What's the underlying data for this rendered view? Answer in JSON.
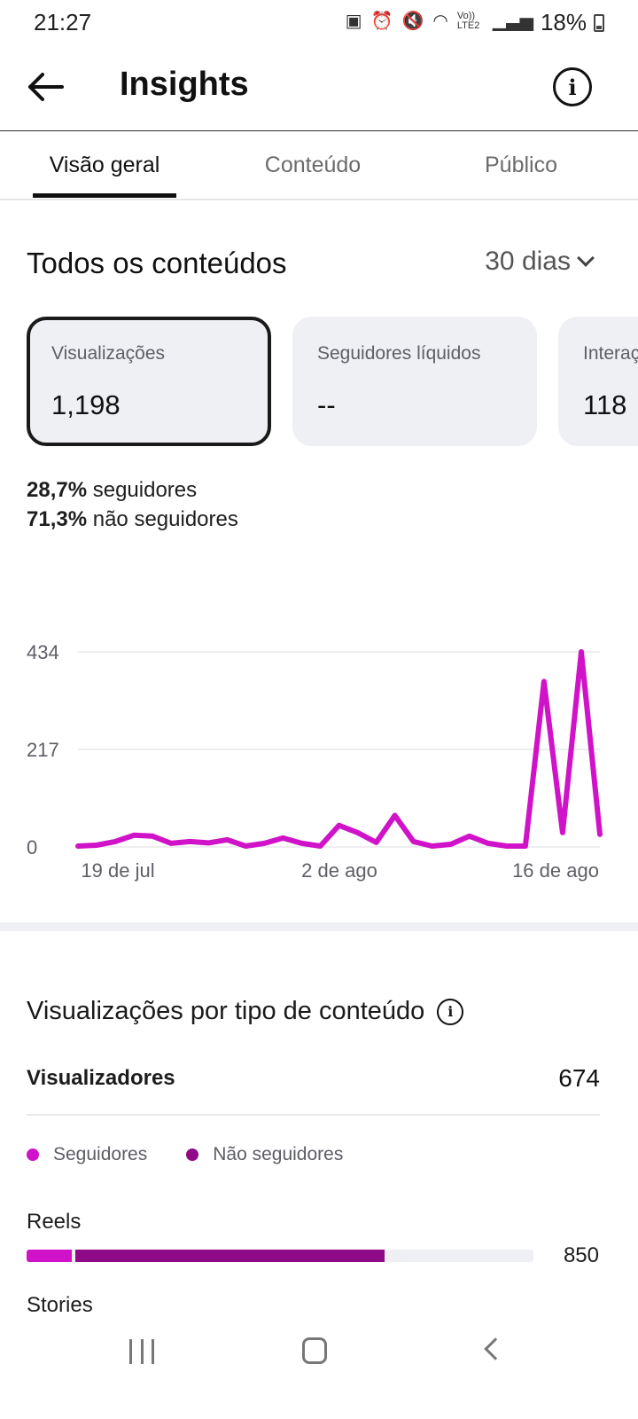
{
  "status_bar": {
    "time": "21:27",
    "icons": [
      "notification-icon",
      "alarm-icon",
      "mute-icon",
      "wifi-icon",
      "volte-icon",
      "signal-icon"
    ],
    "volte_text": "Vo)) LTE2",
    "battery": "18%"
  },
  "header": {
    "title": "Insights"
  },
  "tabs": [
    {
      "label": "Visão geral",
      "active": true
    },
    {
      "label": "Conteúdo",
      "active": false
    },
    {
      "label": "Público",
      "active": false
    }
  ],
  "overview": {
    "section_title": "Todos os conteúdos",
    "period": "30 dias"
  },
  "cards": [
    {
      "label": "Visualizações",
      "value": "1,198",
      "selected": true
    },
    {
      "label": "Seguidores líquidos",
      "value": "--",
      "selected": false
    },
    {
      "label": "Interações",
      "value": "118",
      "selected": false
    }
  ],
  "split": {
    "followers_pct": "28,7%",
    "followers_text": "seguidores",
    "non_followers_pct": "71,3%",
    "non_followers_text": "não seguidores"
  },
  "chart_data": {
    "type": "line",
    "title": "",
    "xlabel": "",
    "ylabel": "",
    "ylim": [
      0,
      434
    ],
    "y_ticks": [
      "0",
      "217",
      "434"
    ],
    "x_ticks": [
      "19 de jul",
      "2 de ago",
      "16 de ago"
    ],
    "grid": true,
    "color": "#d012c8",
    "series": [
      {
        "values": [
          2,
          4,
          12,
          26,
          24,
          8,
          12,
          9,
          16,
          2,
          8,
          20,
          8,
          2,
          48,
          32,
          10,
          70,
          12,
          2,
          6,
          24,
          8,
          2,
          2,
          368,
          32,
          434,
          28
        ]
      }
    ]
  },
  "content_type": {
    "title": "Visualizações por tipo de conteúdo",
    "viewers_label": "Visualizadores",
    "viewers_value": "674",
    "legend": [
      {
        "label": "Seguidores",
        "color": "#d012c8"
      },
      {
        "label": "Não seguidores",
        "color": "#8e0a86"
      }
    ],
    "bars": [
      {
        "label": "Reels",
        "value": "850",
        "followers_fraction": 0.09,
        "non_followers_fraction": 0.61
      },
      {
        "label": "Stories"
      }
    ],
    "track_color": "#eff0f4"
  }
}
